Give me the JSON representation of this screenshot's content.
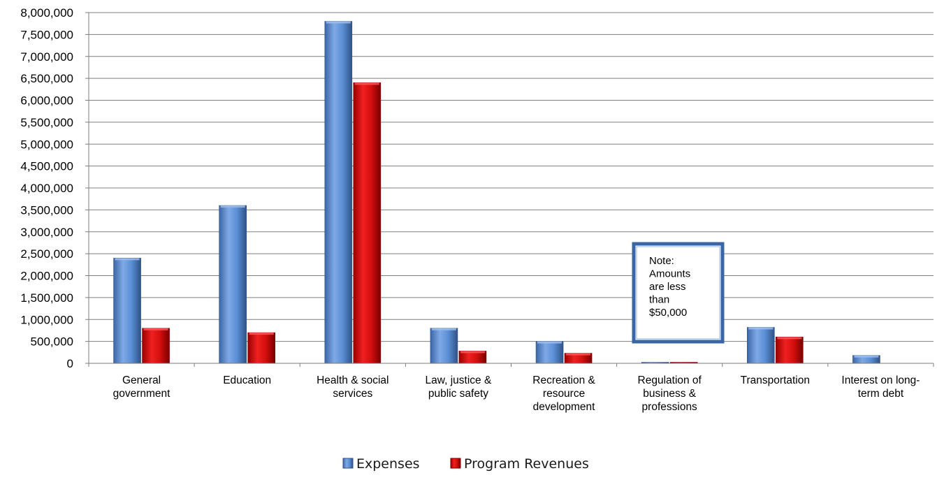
{
  "chart_data": {
    "type": "bar",
    "categories": [
      "General government",
      "Education",
      "Health & social services",
      "Law, justice & public safety",
      "Recreation & resource development",
      "Regulation of business & professions",
      "Transportation",
      "Interest on long-term debt"
    ],
    "category_label_lines": [
      [
        "General",
        "government"
      ],
      [
        "Education"
      ],
      [
        "Health & social",
        "services"
      ],
      [
        "Law, justice &",
        "public safety"
      ],
      [
        "Recreation &",
        "resource",
        "development"
      ],
      [
        "Regulation of",
        "business &",
        "professions"
      ],
      [
        "Transportation"
      ],
      [
        "Interest on long-",
        "term debt"
      ]
    ],
    "series": [
      {
        "name": "Expenses",
        "color": "#5b8fd6",
        "values": [
          2400000,
          3600000,
          7800000,
          800000,
          500000,
          20000,
          820000,
          180000
        ]
      },
      {
        "name": "Program Revenues",
        "color": "#d40e0e",
        "values": [
          800000,
          700000,
          6400000,
          280000,
          230000,
          10000,
          600000,
          0
        ]
      }
    ],
    "yticks": [
      "0",
      "500,000",
      "1,000,000",
      "1,500,000",
      "2,000,000",
      "2,500,000",
      "3,000,000",
      "3,500,000",
      "4,000,000",
      "4,500,000",
      "5,000,000",
      "5,500,000",
      "6,000,000",
      "6,500,000",
      "7,000,000",
      "7,500,000",
      "8,000,000"
    ],
    "ylim": [
      0,
      8000000
    ],
    "grid": true,
    "legend_position": "bottom",
    "annotation": {
      "lines": [
        "Note:",
        "Amounts",
        "are less",
        "than",
        "$50,000"
      ]
    }
  }
}
